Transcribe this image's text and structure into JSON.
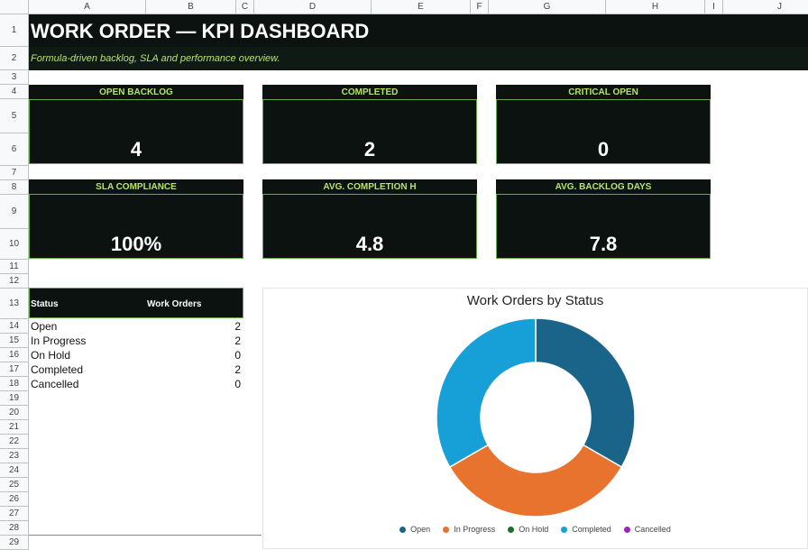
{
  "columns": [
    "A",
    "B",
    "C",
    "D",
    "E",
    "F",
    "G",
    "H",
    "I",
    "J"
  ],
  "rows": [
    "1",
    "2",
    "3",
    "4",
    "5",
    "6",
    "7",
    "8",
    "9",
    "10",
    "11",
    "12",
    "13",
    "14",
    "15",
    "16",
    "17",
    "18",
    "19",
    "20",
    "21",
    "22",
    "23",
    "24",
    "25",
    "26",
    "27",
    "28",
    "29"
  ],
  "header": {
    "title": "WORK ORDER — KPI DASHBOARD",
    "subtitle": "Formula-driven backlog, SLA and performance overview."
  },
  "kpis": [
    {
      "label": "OPEN BACKLOG",
      "value": "4"
    },
    {
      "label": "COMPLETED",
      "value": "2"
    },
    {
      "label": "CRITICAL OPEN",
      "value": "0"
    },
    {
      "label": "SLA COMPLIANCE",
      "value": "100%"
    },
    {
      "label": "AVG. COMPLETION H",
      "value": "4.8"
    },
    {
      "label": "AVG. BACKLOG DAYS",
      "value": "7.8"
    }
  ],
  "status_table": {
    "col_status": "Status",
    "col_count": "Work Orders",
    "rows": [
      {
        "status": "Open",
        "count": "2"
      },
      {
        "status": "In Progress",
        "count": "2"
      },
      {
        "status": "On Hold",
        "count": "0"
      },
      {
        "status": "Completed",
        "count": "2"
      },
      {
        "status": "Cancelled",
        "count": "0"
      }
    ]
  },
  "colors": {
    "open": "#1a6489",
    "in_progress": "#e8732e",
    "on_hold": "#1e6e2e",
    "completed": "#17a0d8",
    "cancelled": "#9c27b0",
    "accent_green": "#b7e36a",
    "dark_bg": "#0b120f"
  },
  "chart_data": {
    "type": "pie",
    "title": "Work Orders by Status",
    "donut": true,
    "legend_position": "bottom",
    "categories": [
      "Open",
      "In Progress",
      "On Hold",
      "Completed",
      "Cancelled"
    ],
    "values": [
      2,
      2,
      0,
      2,
      0
    ],
    "colors": [
      "#1a6489",
      "#e8732e",
      "#1e6e2e",
      "#17a0d8",
      "#9c27b0"
    ]
  }
}
